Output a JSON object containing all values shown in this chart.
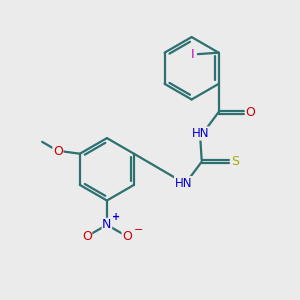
{
  "bg_color": "#ebebeb",
  "bond_color": "#2d7070",
  "bond_width": 1.6,
  "atom_colors": {
    "I": "#cc00cc",
    "N": "#0000cc",
    "O": "#cc0000",
    "S": "#aaaa00",
    "C": "#2d7070",
    "H": "#2d7070"
  },
  "figsize": [
    3.0,
    3.0
  ],
  "dpi": 100
}
